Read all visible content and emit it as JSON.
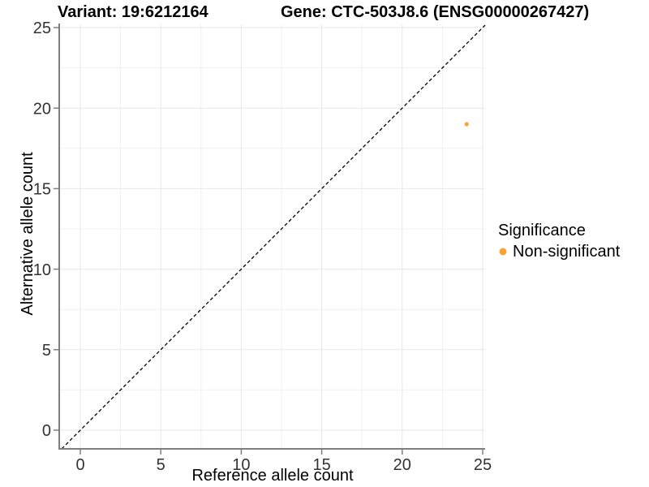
{
  "chart_data": {
    "type": "scatter",
    "title_left": "Variant: 19:6212164",
    "title_right": "Gene: CTC-503J8.6 (ENSG00000267427)",
    "xlabel": "Reference allele count",
    "ylabel": "Alternative allele count",
    "xlim": [
      -1.31,
      25.15
    ],
    "ylim": [
      -1.16,
      25.2
    ],
    "xticks": [
      0,
      5,
      10,
      15,
      20,
      25
    ],
    "yticks": [
      0,
      5,
      10,
      15,
      20,
      25
    ],
    "xtick_labels": [
      "0",
      "5",
      "10",
      "15",
      "20",
      "25"
    ],
    "ytick_labels": [
      "0",
      "5",
      "10",
      "15",
      "20",
      "25"
    ],
    "grid": {
      "on": true,
      "major_step": 5,
      "minor_step": 2.5,
      "major_color": "#e7e7e7",
      "minor_color": "#f0f0f0"
    },
    "reference_line": {
      "kind": "identity",
      "style": "dashed",
      "color": "#000000"
    },
    "series": [
      {
        "name": "Non-significant",
        "color": "#F9A332",
        "points": [
          {
            "x": 24,
            "y": 19
          }
        ]
      }
    ],
    "legend": {
      "title": "Significance",
      "position": "right",
      "entries": [
        {
          "label": "Non-significant",
          "color": "#F9A332"
        }
      ]
    }
  },
  "colors": {
    "background": "#ffffff",
    "axis_line": "#7f7f7f",
    "tick_mark": "#7f7f7f",
    "tick_label": "#333333",
    "text": "#000000"
  }
}
